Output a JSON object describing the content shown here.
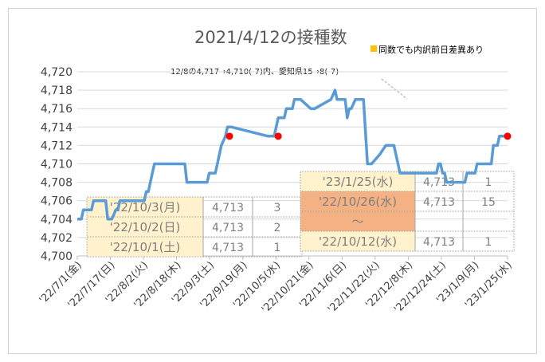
{
  "chart_data": {
    "type": "line",
    "title": "2021/4/12の接種数",
    "legend": {
      "label": "同数でも内訳前日差異あり",
      "color": "#ffc000"
    },
    "annotation": "12/8の4,717→4,710(-7)内、愛知県15→8(-7)",
    "ylim": [
      4700,
      4720
    ],
    "yticks": [
      "4,700",
      "4,702",
      "4,704",
      "4,706",
      "4,708",
      "4,710",
      "4,712",
      "4,714",
      "4,716",
      "4,718",
      "4,720"
    ],
    "grid": true,
    "xlabels": [
      "'22/7/1(金)",
      "'22/7/17(日)",
      "'22/8/2(火)",
      "'22/8/18(木)",
      "'22/9/3(土)",
      "'22/9/19(月)",
      "'22/10/5(水)",
      "'22/10/21(金)",
      "'22/11/6(日)",
      "'22/11/22(火)",
      "'22/12/8(木)",
      "'22/12/24(土)",
      "'23/1/9(月)",
      "'23/1/25(水)"
    ],
    "series": [
      {
        "color": "#5b9bd5",
        "x": [
          0,
          2,
          3,
          7,
          8,
          9,
          14,
          15,
          17,
          19,
          20,
          21,
          28,
          29,
          32,
          33,
          34,
          35,
          36,
          37,
          38,
          53,
          54,
          58,
          59,
          64,
          65,
          67,
          68,
          69,
          71,
          73,
          74,
          75,
          76,
          94,
          95,
          97,
          99,
          101,
          102,
          103,
          106,
          107,
          108,
          110,
          115,
          117,
          125,
          127,
          128,
          132,
          133,
          134,
          135,
          137,
          138,
          139,
          141,
          143,
          144,
          145,
          149,
          152,
          154,
          156,
          158,
          159,
          162,
          167,
          168,
          169,
          170,
          171,
          172,
          173,
          174,
          175,
          176,
          177,
          178,
          179,
          180,
          181,
          182,
          183,
          184,
          185,
          186,
          187,
          188,
          189,
          190,
          191,
          192,
          193,
          194,
          195,
          196,
          197,
          198,
          199,
          200,
          201,
          202,
          203,
          204,
          205,
          206,
          207,
          208,
          209,
          210,
          211,
          212
        ],
        "y": [
          4704,
          4704,
          4705,
          4705,
          4706,
          4706,
          4706,
          4704,
          4704,
          4705,
          4705,
          4706,
          4706,
          4706,
          4706,
          4706,
          4707,
          4707,
          4708,
          4709,
          4710,
          4710,
          4708,
          4708,
          4708,
          4708,
          4709,
          4709,
          4709,
          4710,
          4712,
          4713,
          4714,
          4714,
          4714,
          4713,
          4713,
          4713,
          4715,
          4715,
          4715,
          4716,
          4716,
          4717,
          4717,
          4717,
          4716,
          4716,
          4717,
          4718,
          4717,
          4717,
          4715,
          4716,
          4716,
          4717,
          4717,
          4717,
          4717,
          4710,
          4710,
          4710,
          4711,
          4712,
          4712,
          4712,
          4710,
          4709,
          4709,
          4709,
          4709,
          4709,
          4709,
          4709,
          4709,
          4709,
          4709,
          4709,
          4709,
          4709,
          4710,
          4710,
          4709,
          4709,
          4708,
          4708,
          4708,
          4708,
          4708,
          4708,
          4708,
          4708,
          4708,
          4708,
          4709,
          4709,
          4709,
          4709,
          4709,
          4710,
          4710,
          4710,
          4710,
          4710,
          4710,
          4710,
          4710,
          4712,
          4712,
          4712,
          4713,
          4713,
          4713,
          4713,
          4713
        ]
      }
    ],
    "markers": [
      {
        "x": 75,
        "y": 4713,
        "color": "#ff0000"
      },
      {
        "x": 99,
        "y": 4713,
        "color": "#ff0000"
      },
      {
        "x": 212,
        "y": 4713,
        "color": "#ff0000"
      }
    ]
  },
  "table_left": [
    [
      "'22/10/3(月)",
      "4,713",
      "3"
    ],
    [
      "'22/10/2(日)",
      "4,713",
      "2"
    ],
    [
      "'22/10/1(土)",
      "4,713",
      "1"
    ]
  ],
  "table_right": [
    [
      "'23/1/25(水)",
      "4,713",
      "1"
    ],
    [
      "'22/10/26(水)",
      "4,713",
      "15"
    ],
    [
      "～",
      "",
      ""
    ],
    [
      "'22/10/12(水)",
      "4,713",
      "1"
    ]
  ],
  "colors": {
    "cell_bg": "#fff2cc",
    "cell_highlight": "#f4b183",
    "grid": "#d9d9d9"
  }
}
